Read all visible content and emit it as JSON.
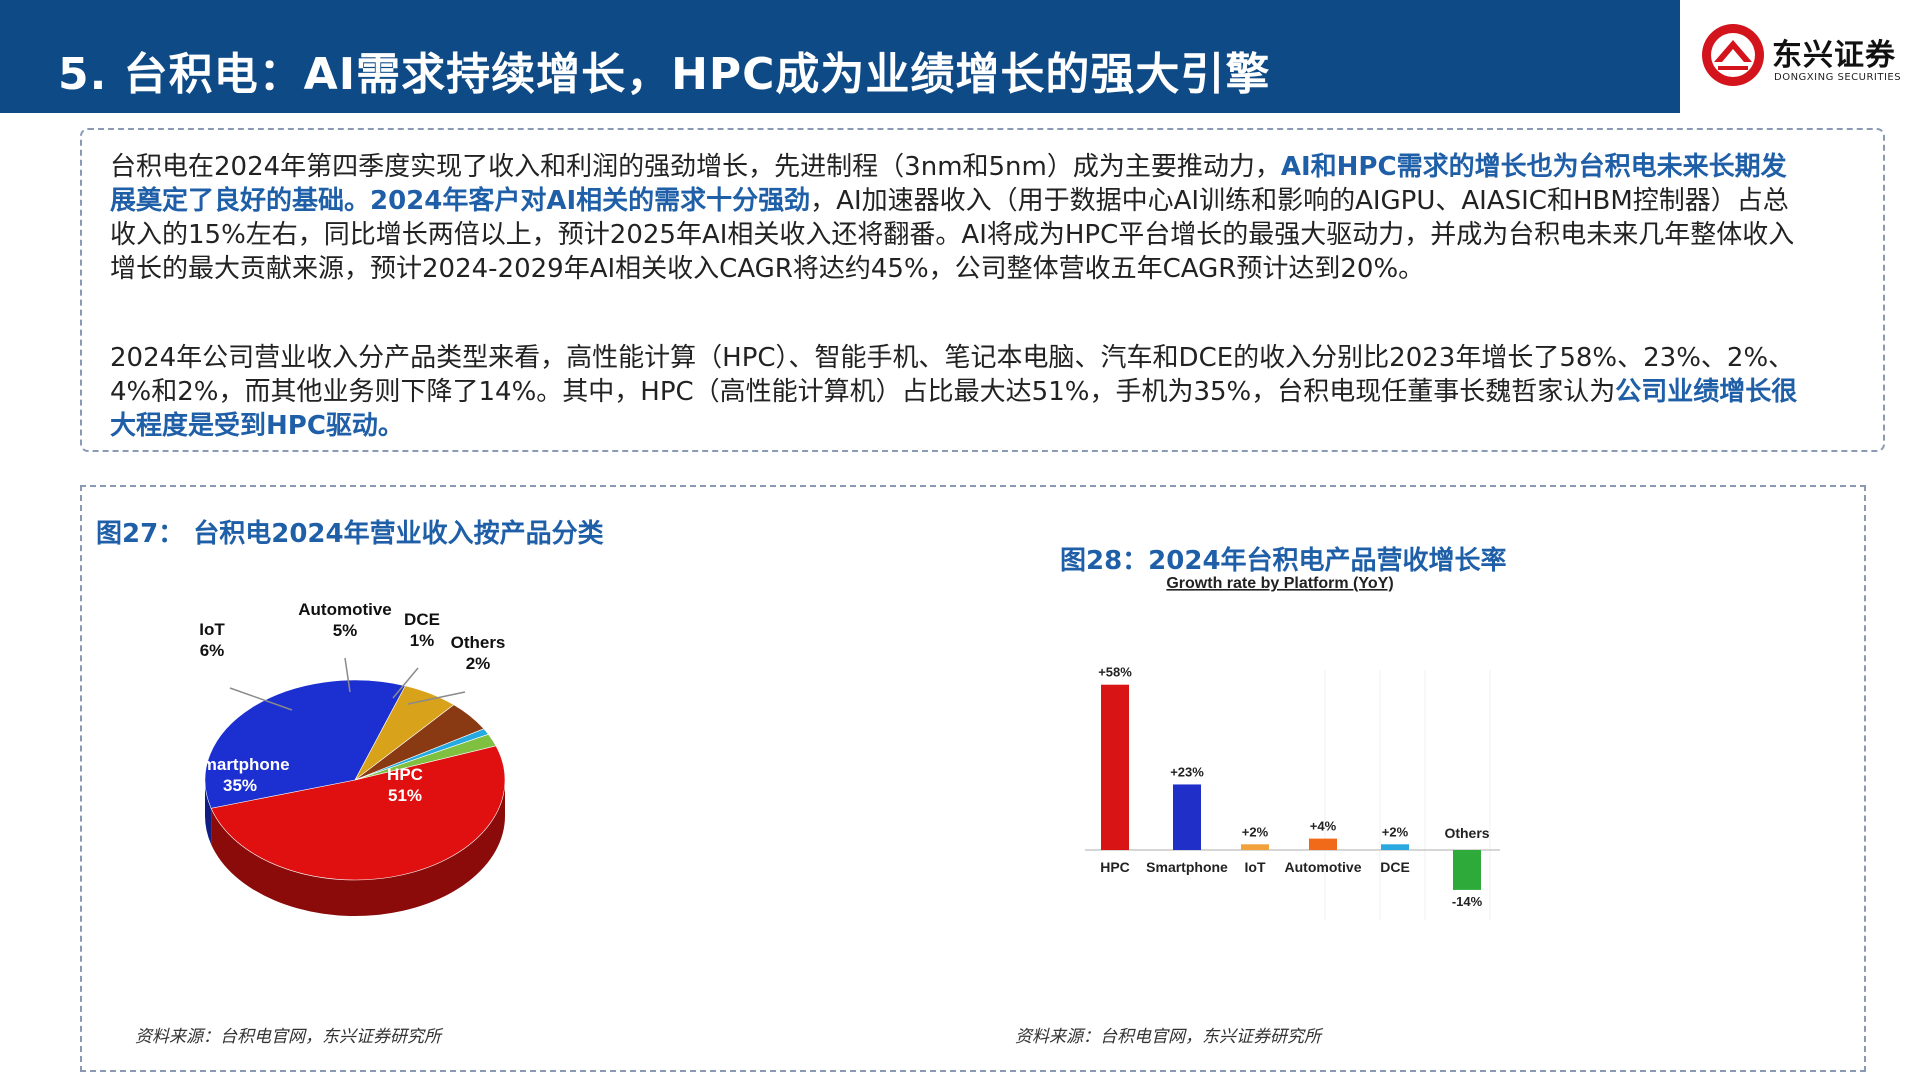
{
  "header": {
    "title": "5. 台积电：AI需求持续增长，HPC成为业绩增长的强大引擎",
    "logo_name": "东兴证券",
    "logo_sub": "DONGXING SECURITIES"
  },
  "text": {
    "p1_a": "台积电在2024年第四季度实现了收入和利润的强劲增长，先进制程（3nm和5nm）成为主要推动力，",
    "p1_b": "AI和HPC需求的增长也为台积电未来长期发展奠定了良好的基础。2024年客户对AI相关的需求十分强劲",
    "p1_c": "，AI加速器收入（用于数据中心AI训练和影响的AIGPU、AIASIC和HBM控制器）占总收入的15%左右，同比增长两倍以上，预计2025年AI相关收入还将翻番。AI将成为HPC平台增长的最强大驱动力，并成为台积电未来几年整体收入增长的最大贡献来源，预计2024-2029年AI相关收入CAGR将达约45%，公司整体营收五年CAGR预计达到20%。",
    "p2_a": "2024年公司营业收入分产品类型来看，高性能计算（HPC）、智能手机、笔记本电脑、汽车和DCE的收入分别比2023年增长了58%、23%、2%、4%和2%，而其他业务则下降了14%。其中，HPC（高性能计算机）占比最大达51%，手机为35%，台积电现任董事长魏哲家认为",
    "p2_b": "公司业绩增长很大程度是受到HPC驱动。"
  },
  "figures": {
    "fig27_title": "图27： 台积电2024年营业收入按产品分类",
    "fig28_title": "图28：2024年台积电产品营收增长率",
    "source1": "资料来源：台积电官网，东兴证券研究所",
    "source2": "资料来源：台积电官网，东兴证券研究所"
  },
  "chart_data": [
    {
      "type": "pie",
      "title": "图27： 台积电2024年营业收入按产品分类",
      "slices": [
        {
          "label": "HPC",
          "value": 51,
          "text": "51%",
          "color": "#e01010"
        },
        {
          "label": "Smartphone",
          "value": 35,
          "text": "35%",
          "color": "#1c2fd0"
        },
        {
          "label": "IoT",
          "value": 6,
          "text": "6%",
          "color": "#d8a21a"
        },
        {
          "label": "Automotive",
          "value": 5,
          "text": "5%",
          "color": "#8a3a12"
        },
        {
          "label": "DCE",
          "value": 1,
          "text": "1%",
          "color": "#25a9e0"
        },
        {
          "label": "Others",
          "value": 2,
          "text": "2%",
          "color": "#7fc040"
        }
      ]
    },
    {
      "type": "bar",
      "title": "图28：2024年台积电产品营收增长率",
      "subtitle": "Growth rate by Platform (YoY)",
      "categories": [
        "HPC",
        "Smartphone",
        "IoT",
        "Automotive",
        "DCE",
        "Others"
      ],
      "values": [
        58,
        23,
        2,
        4,
        2,
        -14
      ],
      "value_labels": [
        "+58%",
        "+23%",
        "+2%",
        "+4%",
        "+2%",
        "-14%"
      ],
      "colors": [
        "#d81414",
        "#1f2fc8",
        "#f2a23a",
        "#f06a1a",
        "#2aa8e0",
        "#2eaa3a"
      ],
      "ylim": [
        -14,
        58
      ]
    }
  ]
}
